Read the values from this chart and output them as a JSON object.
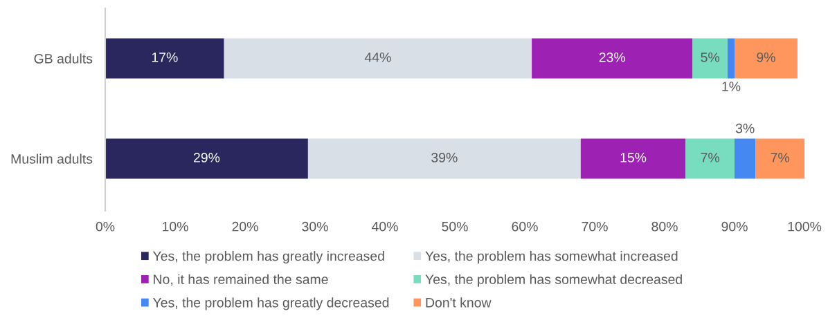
{
  "chart_data": {
    "type": "bar",
    "orientation": "horizontal",
    "stacked": true,
    "categories": [
      "GB adults",
      "Muslim adults"
    ],
    "series": [
      {
        "name": "Yes, the problem has greatly increased",
        "color": "#2a275f",
        "values": [
          17,
          29
        ],
        "value_labels": [
          "17%",
          "29%"
        ]
      },
      {
        "name": "Yes, the problem has somewhat increased",
        "color": "#d9dfe6",
        "values": [
          44,
          39
        ],
        "value_labels": [
          "44%",
          "39%"
        ]
      },
      {
        "name": "No, it has remained the same",
        "color": "#9d22b3",
        "values": [
          23,
          15
        ],
        "value_labels": [
          "23%",
          "15%"
        ]
      },
      {
        "name": "Yes, the problem has somewhat decreased",
        "color": "#78dcbf",
        "values": [
          5,
          7
        ],
        "value_labels": [
          "5%",
          "7%"
        ]
      },
      {
        "name": "Yes, the problem has greatly decreased",
        "color": "#4688f2",
        "values": [
          1,
          3
        ],
        "value_labels": [
          "1%",
          "3%"
        ]
      },
      {
        "name": "Don't know",
        "color": "#ff965e",
        "values": [
          9,
          7
        ],
        "value_labels": [
          "9%",
          "7%"
        ]
      }
    ],
    "xlim": [
      0,
      100
    ],
    "xticks": [
      {
        "value": 0,
        "label": "0%"
      },
      {
        "value": 10,
        "label": "10%"
      },
      {
        "value": 20,
        "label": "20%"
      },
      {
        "value": 30,
        "label": "30%"
      },
      {
        "value": 40,
        "label": "40%"
      },
      {
        "value": 50,
        "label": "50%"
      },
      {
        "value": 60,
        "label": "60%"
      },
      {
        "value": 70,
        "label": "70%"
      },
      {
        "value": 80,
        "label": "80%"
      },
      {
        "value": 90,
        "label": "90%"
      },
      {
        "value": 100,
        "label": "100%"
      }
    ],
    "legend": "bottom",
    "grid": false
  }
}
